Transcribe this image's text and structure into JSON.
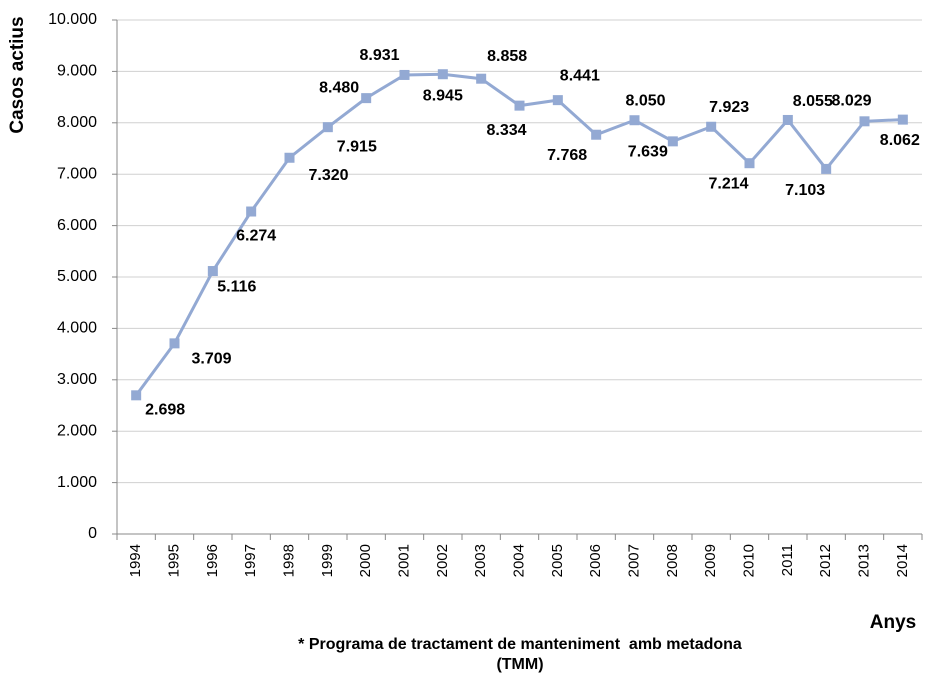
{
  "chart_data": {
    "type": "line",
    "y_axis_label": "Casos actius",
    "x_axis_label": "Anys",
    "footnote": [
      "* Programa de tractament de manteniment  amb metadona",
      "(TMM)"
    ],
    "categories": [
      "1994",
      "1995",
      "1996",
      "1997",
      "1998",
      "1999",
      "2000",
      "2001",
      "2002",
      "2003",
      "2004",
      "2005",
      "2006",
      "2007",
      "2008",
      "2009",
      "2010",
      "2011",
      "2012",
      "2013",
      "2014"
    ],
    "series": [
      {
        "name": "Casos actius",
        "color": "#93a9d3",
        "values": [
          2698,
          3709,
          5116,
          6274,
          7320,
          7915,
          8480,
          8931,
          8945,
          8858,
          8334,
          8441,
          7768,
          8050,
          7639,
          7923,
          7214,
          8055,
          7103,
          8029,
          8062
        ],
        "value_labels": [
          "2.698",
          "3.709",
          "5.116",
          "6.274",
          "7.320",
          "7.915",
          "8.480",
          "8.931",
          "8.945",
          "8.858",
          "8.334",
          "8.441",
          "7.768",
          "8.050",
          "7.639",
          "7.923",
          "7.214",
          "8.055",
          "7.103",
          "8.029",
          "8.062"
        ]
      }
    ],
    "ylim": [
      0,
      10000
    ],
    "yticks": [
      0,
      {
        "value": 1000,
        "label": "1.000"
      },
      {
        "value": 2000,
        "label": "2.000"
      },
      {
        "value": 3000,
        "label": "3.000"
      },
      {
        "value": 4000,
        "label": "4.000"
      },
      {
        "value": 5000,
        "label": "5.000"
      },
      {
        "value": 6000,
        "label": "6.000"
      },
      {
        "value": 7000,
        "label": "7.000"
      },
      {
        "value": 8000,
        "label": "8.000"
      },
      {
        "value": 9000,
        "label": "9.000"
      },
      {
        "value": 10000,
        "label": "10.000"
      }
    ],
    "grid": true
  }
}
